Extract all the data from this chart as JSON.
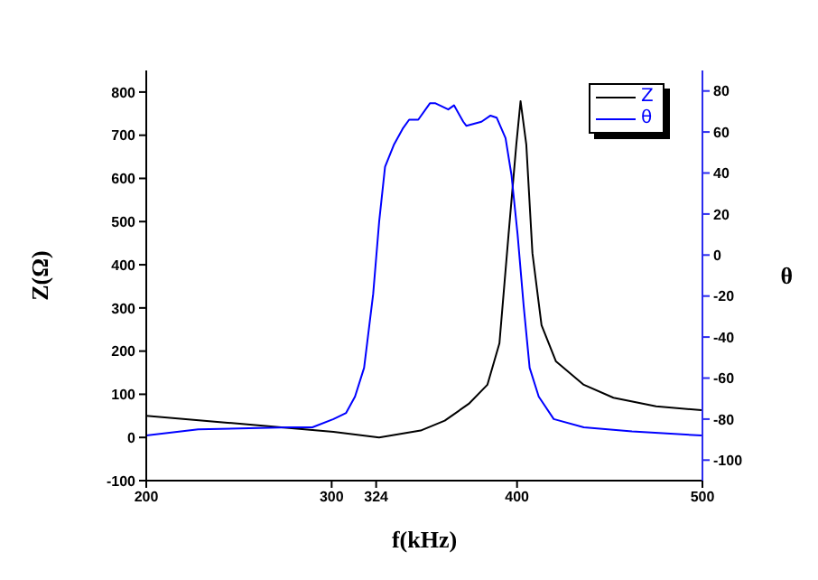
{
  "chart_data": {
    "type": "line",
    "xlabel": "f(kHz)",
    "ylabel": "Z(Ω)",
    "y2label": "θ",
    "xlim": [
      200,
      500
    ],
    "xticks": [
      200,
      300,
      324,
      400,
      500
    ],
    "ylim": [
      -100,
      850
    ],
    "yticks": [
      -100,
      0,
      100,
      200,
      300,
      400,
      500,
      600,
      700,
      800
    ],
    "y2lim": [
      -110,
      90
    ],
    "y2ticks": [
      -100,
      -80,
      -60,
      -40,
      -20,
      0,
      20,
      40,
      60,
      80
    ],
    "legend": "top right",
    "series": [
      {
        "name": "Z",
        "color": "#000000",
        "x": [
          200,
          244,
          277,
          301,
          325.6,
          348,
          361,
          374,
          384,
          390.5,
          395.4,
          399.6,
          401.9,
          405,
          408.3,
          413.2,
          421,
          436,
          452,
          475,
          499.5
        ],
        "values": [
          50,
          34,
          22,
          13,
          0,
          16,
          39,
          78,
          122,
          218,
          469,
          678,
          779,
          678,
          427,
          260,
          176,
          122,
          92,
          72,
          63
        ]
      },
      {
        "name": "θ",
        "color": "#0000ff",
        "axis": "y2",
        "x": [
          200,
          228,
          277,
          289.6,
          301,
          307.8,
          312.6,
          317.5,
          322.4,
          325.6,
          328.8,
          333.7,
          338.6,
          341.8,
          346.7,
          353,
          356,
          362.9,
          366,
          371,
          372.7,
          380.8,
          385.7,
          389,
          393.8,
          397,
          400.3,
          403.6,
          406.8,
          411.7,
          419.8,
          436,
          462,
          499.5
        ],
        "values": [
          -88,
          -85,
          -84,
          -84,
          -80,
          -77,
          -69,
          -55,
          -19,
          16,
          43,
          54,
          62,
          66,
          66,
          74,
          74,
          71,
          73,
          65,
          63,
          65,
          68,
          67,
          57,
          39,
          10,
          -25,
          -55,
          -69,
          -80,
          -84,
          -86,
          -88
        ]
      }
    ]
  }
}
